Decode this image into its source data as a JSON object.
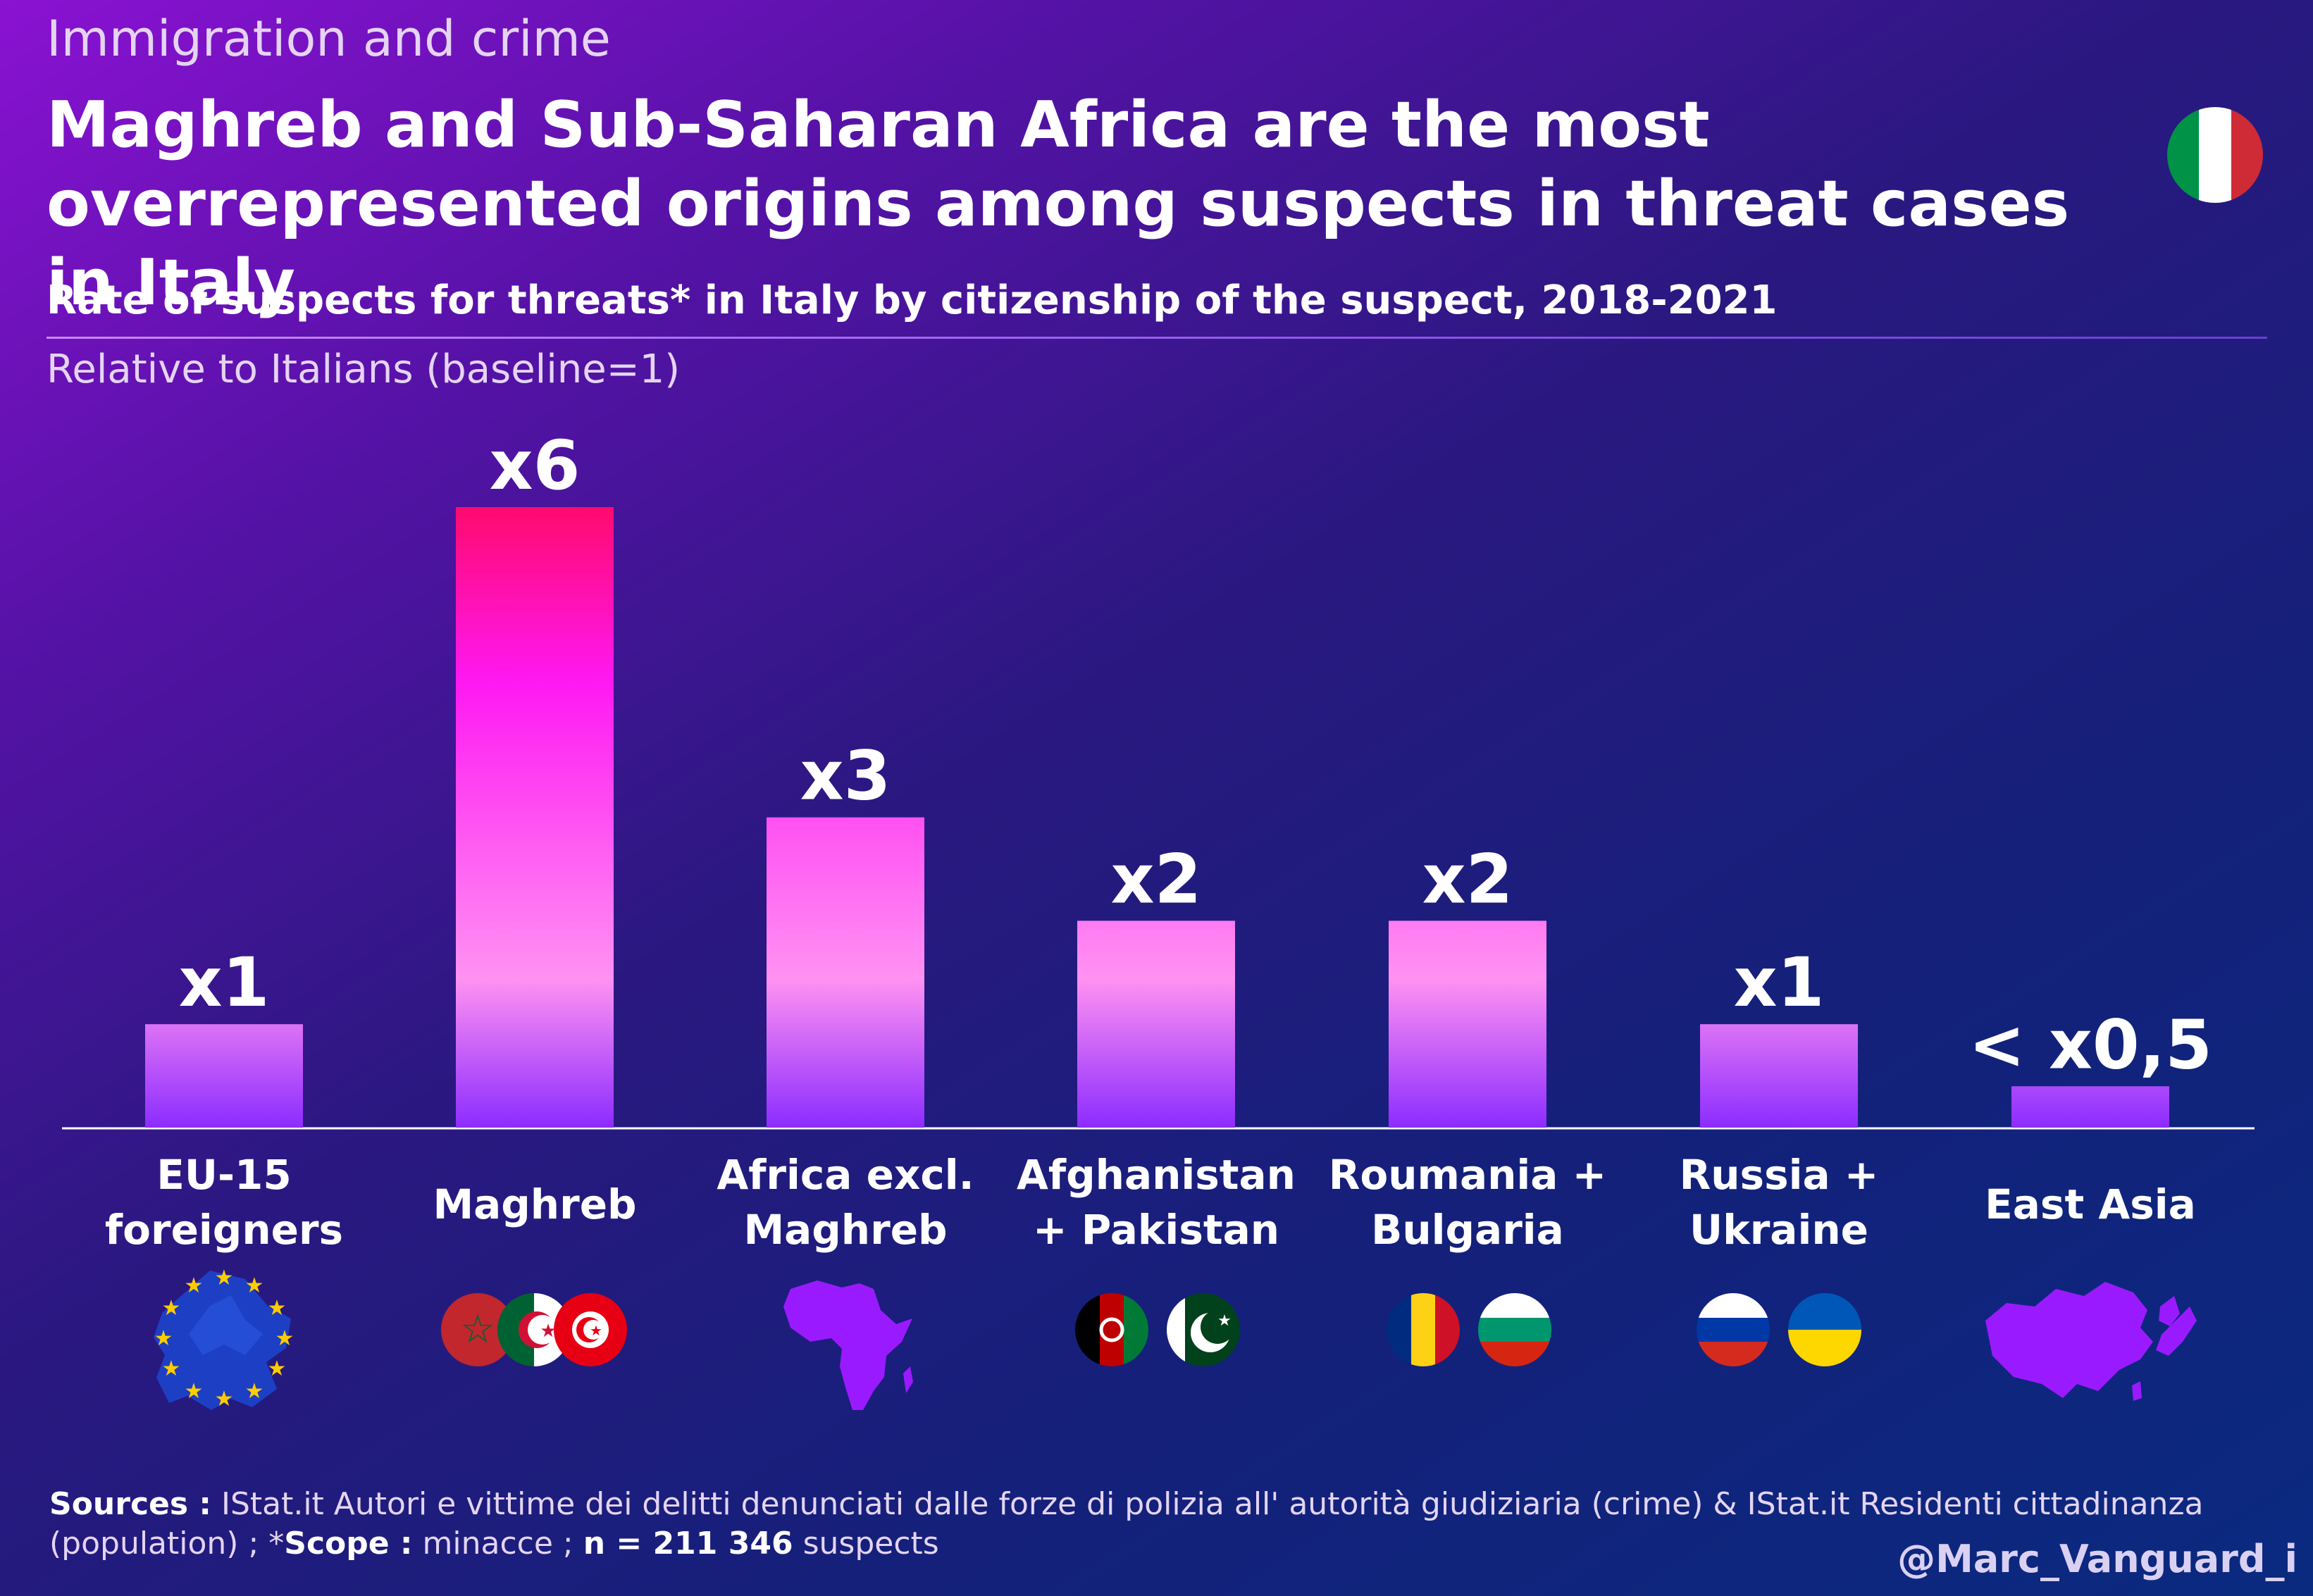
{
  "header": {
    "kicker": "Immigration and crime",
    "title": "Maghreb and Sub-Saharan Africa are the most overrepresented origins among suspects in threat cases in Italy",
    "subtitle": "Rate of suspects for threats* in Italy by citizenship of the suspect, 2018-2021",
    "unit_note": "Relative to Italians (baseline=1)"
  },
  "chart_data": {
    "type": "bar",
    "title": "Rate of suspects for threats* in Italy by citizenship of the suspect, 2018-2021",
    "ylabel": "Relative to Italians (baseline=1)",
    "xlabel": "",
    "categories": [
      "EU-15 foreigners",
      "Maghreb",
      "Africa excl. Maghreb",
      "Afghanistan + Pakistan",
      "Roumania + Bulgaria",
      "Russia + Ukraine",
      "East Asia"
    ],
    "values": [
      1,
      6,
      3,
      2,
      2,
      1,
      0.4
    ],
    "value_labels": [
      "x1",
      "x6",
      "x3",
      "x2",
      "x2",
      "x1",
      "< x0,5"
    ],
    "ylim": [
      0,
      6
    ],
    "grid": false,
    "legend": "none"
  },
  "category_icons": [
    [
      "eu-map-icon"
    ],
    [
      "morocco-flag-icon",
      "algeria-flag-icon",
      "tunisia-flag-icon"
    ],
    [
      "africa-map-icon"
    ],
    [
      "afghanistan-flag-icon",
      "pakistan-flag-icon"
    ],
    [
      "romania-flag-icon",
      "bulgaria-flag-icon"
    ],
    [
      "russia-flag-icon",
      "ukraine-flag-icon"
    ],
    [
      "east-asia-map-icon"
    ]
  ],
  "colors": {
    "bar_top_max": "#ff0a6e",
    "bar_mid": "#ff18f2",
    "bar_light": "#ff92f2",
    "bar_bottom": "#8c2cff",
    "shape_purple": "#9a1aff",
    "eu_blue": "#1d3fc4",
    "eu_star": "#ffcc00"
  },
  "footer": {
    "sources_label": "Sources :",
    "sources_text": "IStat.it Autori e vittime dei delitti denunciati dalle forze di polizia all' autorità giudiziaria (crime) & IStat.it Residenti cittadinanza (population) ; *",
    "scope_label": "Scope :",
    "scope_text": "minacce ;",
    "n_label": "n = 211 346",
    "n_suffix": "suspects",
    "handle": "@Marc_Vanguard_i"
  },
  "flag_icon": "italy-flag-icon"
}
